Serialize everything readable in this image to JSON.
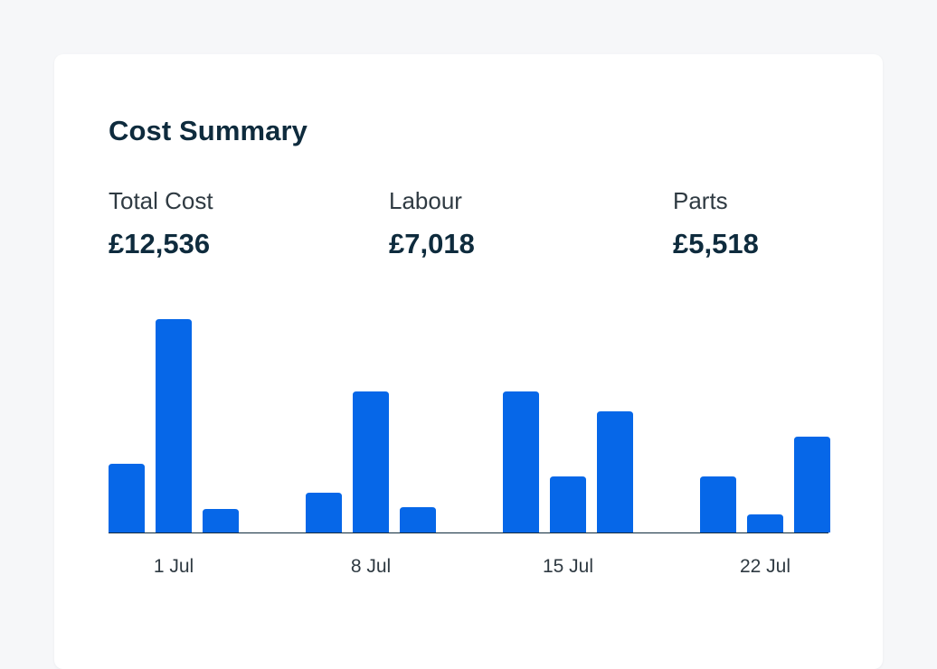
{
  "card": {
    "title": "Cost Summary"
  },
  "stats": [
    {
      "label": "Total Cost",
      "value": "£12,536"
    },
    {
      "label": "Labour",
      "value": "£7,018"
    },
    {
      "label": "Parts",
      "value": "£5,518"
    }
  ],
  "colors": {
    "bar": "#0667e8",
    "axis": "#0e2b3d"
  },
  "chart_data": {
    "type": "bar",
    "x_tick_labels": [
      "1 Jul",
      "8 Jul",
      "15 Jul",
      "22 Jul"
    ],
    "groups": [
      {
        "label": "1 Jul",
        "values": [
          76,
          236,
          26
        ]
      },
      {
        "label": "8 Jul",
        "values": [
          44,
          156,
          28
        ]
      },
      {
        "label": "15 Jul",
        "values": [
          156,
          62,
          134
        ]
      },
      {
        "label": "22 Jul",
        "values": [
          62,
          20,
          106
        ]
      }
    ],
    "ylim": [
      0,
      236
    ],
    "grid": false,
    "legend": "none",
    "title": "",
    "xlabel": "",
    "ylabel": ""
  }
}
